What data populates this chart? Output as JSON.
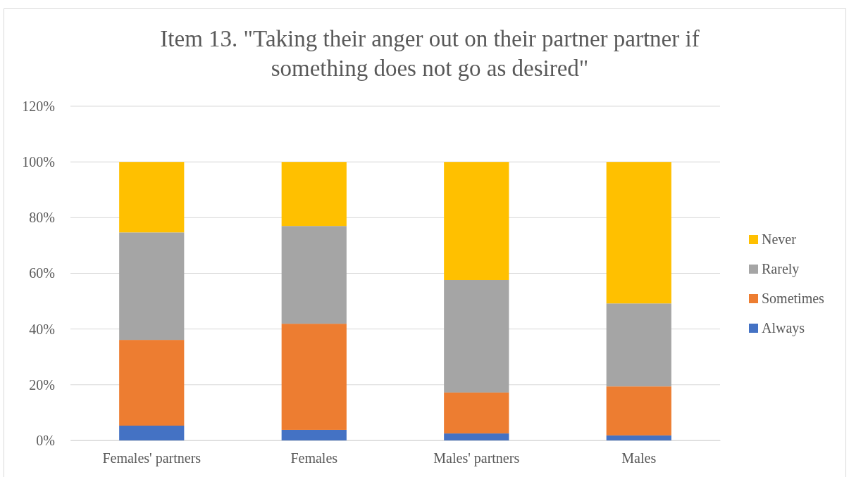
{
  "chart_data": {
    "type": "bar",
    "stacked": true,
    "title": "Item 13. \"Taking their anger out on their partner partner if something does not go as desired\"",
    "categories": [
      "Females' partners",
      "Females",
      "Males' partners",
      "Males"
    ],
    "series": [
      {
        "name": "Always",
        "color": "#4472c4",
        "values": [
          5.3,
          3.8,
          2.5,
          1.8
        ]
      },
      {
        "name": "Sometimes",
        "color": "#ed7d31",
        "values": [
          30.8,
          38.1,
          14.7,
          17.6
        ]
      },
      {
        "name": "Rarely",
        "color": "#a5a5a5",
        "values": [
          38.6,
          35.1,
          40.4,
          29.8
        ]
      },
      {
        "name": "Never",
        "color": "#ffc000",
        "values": [
          25.3,
          23.0,
          42.4,
          50.8
        ]
      }
    ],
    "ylim": [
      0,
      120
    ],
    "yticks": [
      {
        "value": 0,
        "label": "0%"
      },
      {
        "value": 20,
        "label": "20%"
      },
      {
        "value": 40,
        "label": "40%"
      },
      {
        "value": 60,
        "label": "60%"
      },
      {
        "value": 80,
        "label": "80%"
      },
      {
        "value": 100,
        "label": "100%"
      },
      {
        "value": 120,
        "label": "120%"
      }
    ],
    "grid": "y",
    "legend": "right"
  }
}
